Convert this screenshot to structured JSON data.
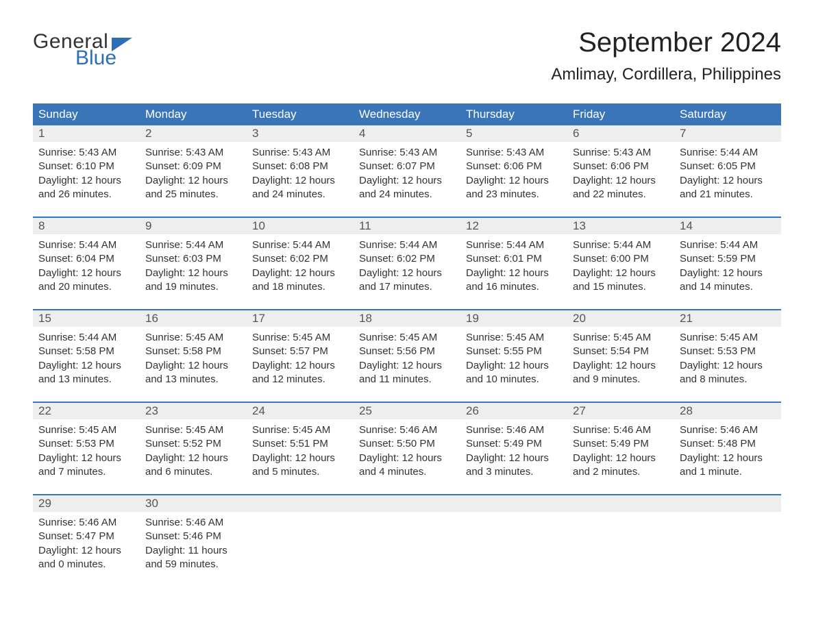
{
  "brand": {
    "word1": "General",
    "word2": "Blue",
    "word1_color": "#333333",
    "word2_color": "#2d6fb6",
    "flag_color": "#2d6fb6"
  },
  "header": {
    "title": "September 2024",
    "location": "Amlimay, Cordillera, Philippines",
    "title_fontsize": 40,
    "location_fontsize": 24
  },
  "style": {
    "header_bg": "#3a76b7",
    "header_text": "#ffffff",
    "day_head_bg": "#eeeeee",
    "day_head_text": "#555555",
    "body_text": "#333333",
    "week_divider": "#3a76b7",
    "page_bg": "#ffffff",
    "cell_fontsize": 15,
    "daynum_fontsize": 17
  },
  "columns": [
    "Sunday",
    "Monday",
    "Tuesday",
    "Wednesday",
    "Thursday",
    "Friday",
    "Saturday"
  ],
  "weeks": [
    [
      {
        "n": "1",
        "sunrise": "Sunrise: 5:43 AM",
        "sunset": "Sunset: 6:10 PM",
        "d1": "Daylight: 12 hours",
        "d2": "and 26 minutes."
      },
      {
        "n": "2",
        "sunrise": "Sunrise: 5:43 AM",
        "sunset": "Sunset: 6:09 PM",
        "d1": "Daylight: 12 hours",
        "d2": "and 25 minutes."
      },
      {
        "n": "3",
        "sunrise": "Sunrise: 5:43 AM",
        "sunset": "Sunset: 6:08 PM",
        "d1": "Daylight: 12 hours",
        "d2": "and 24 minutes."
      },
      {
        "n": "4",
        "sunrise": "Sunrise: 5:43 AM",
        "sunset": "Sunset: 6:07 PM",
        "d1": "Daylight: 12 hours",
        "d2": "and 24 minutes."
      },
      {
        "n": "5",
        "sunrise": "Sunrise: 5:43 AM",
        "sunset": "Sunset: 6:06 PM",
        "d1": "Daylight: 12 hours",
        "d2": "and 23 minutes."
      },
      {
        "n": "6",
        "sunrise": "Sunrise: 5:43 AM",
        "sunset": "Sunset: 6:06 PM",
        "d1": "Daylight: 12 hours",
        "d2": "and 22 minutes."
      },
      {
        "n": "7",
        "sunrise": "Sunrise: 5:44 AM",
        "sunset": "Sunset: 6:05 PM",
        "d1": "Daylight: 12 hours",
        "d2": "and 21 minutes."
      }
    ],
    [
      {
        "n": "8",
        "sunrise": "Sunrise: 5:44 AM",
        "sunset": "Sunset: 6:04 PM",
        "d1": "Daylight: 12 hours",
        "d2": "and 20 minutes."
      },
      {
        "n": "9",
        "sunrise": "Sunrise: 5:44 AM",
        "sunset": "Sunset: 6:03 PM",
        "d1": "Daylight: 12 hours",
        "d2": "and 19 minutes."
      },
      {
        "n": "10",
        "sunrise": "Sunrise: 5:44 AM",
        "sunset": "Sunset: 6:02 PM",
        "d1": "Daylight: 12 hours",
        "d2": "and 18 minutes."
      },
      {
        "n": "11",
        "sunrise": "Sunrise: 5:44 AM",
        "sunset": "Sunset: 6:02 PM",
        "d1": "Daylight: 12 hours",
        "d2": "and 17 minutes."
      },
      {
        "n": "12",
        "sunrise": "Sunrise: 5:44 AM",
        "sunset": "Sunset: 6:01 PM",
        "d1": "Daylight: 12 hours",
        "d2": "and 16 minutes."
      },
      {
        "n": "13",
        "sunrise": "Sunrise: 5:44 AM",
        "sunset": "Sunset: 6:00 PM",
        "d1": "Daylight: 12 hours",
        "d2": "and 15 minutes."
      },
      {
        "n": "14",
        "sunrise": "Sunrise: 5:44 AM",
        "sunset": "Sunset: 5:59 PM",
        "d1": "Daylight: 12 hours",
        "d2": "and 14 minutes."
      }
    ],
    [
      {
        "n": "15",
        "sunrise": "Sunrise: 5:44 AM",
        "sunset": "Sunset: 5:58 PM",
        "d1": "Daylight: 12 hours",
        "d2": "and 13 minutes."
      },
      {
        "n": "16",
        "sunrise": "Sunrise: 5:45 AM",
        "sunset": "Sunset: 5:58 PM",
        "d1": "Daylight: 12 hours",
        "d2": "and 13 minutes."
      },
      {
        "n": "17",
        "sunrise": "Sunrise: 5:45 AM",
        "sunset": "Sunset: 5:57 PM",
        "d1": "Daylight: 12 hours",
        "d2": "and 12 minutes."
      },
      {
        "n": "18",
        "sunrise": "Sunrise: 5:45 AM",
        "sunset": "Sunset: 5:56 PM",
        "d1": "Daylight: 12 hours",
        "d2": "and 11 minutes."
      },
      {
        "n": "19",
        "sunrise": "Sunrise: 5:45 AM",
        "sunset": "Sunset: 5:55 PM",
        "d1": "Daylight: 12 hours",
        "d2": "and 10 minutes."
      },
      {
        "n": "20",
        "sunrise": "Sunrise: 5:45 AM",
        "sunset": "Sunset: 5:54 PM",
        "d1": "Daylight: 12 hours",
        "d2": "and 9 minutes."
      },
      {
        "n": "21",
        "sunrise": "Sunrise: 5:45 AM",
        "sunset": "Sunset: 5:53 PM",
        "d1": "Daylight: 12 hours",
        "d2": "and 8 minutes."
      }
    ],
    [
      {
        "n": "22",
        "sunrise": "Sunrise: 5:45 AM",
        "sunset": "Sunset: 5:53 PM",
        "d1": "Daylight: 12 hours",
        "d2": "and 7 minutes."
      },
      {
        "n": "23",
        "sunrise": "Sunrise: 5:45 AM",
        "sunset": "Sunset: 5:52 PM",
        "d1": "Daylight: 12 hours",
        "d2": "and 6 minutes."
      },
      {
        "n": "24",
        "sunrise": "Sunrise: 5:45 AM",
        "sunset": "Sunset: 5:51 PM",
        "d1": "Daylight: 12 hours",
        "d2": "and 5 minutes."
      },
      {
        "n": "25",
        "sunrise": "Sunrise: 5:46 AM",
        "sunset": "Sunset: 5:50 PM",
        "d1": "Daylight: 12 hours",
        "d2": "and 4 minutes."
      },
      {
        "n": "26",
        "sunrise": "Sunrise: 5:46 AM",
        "sunset": "Sunset: 5:49 PM",
        "d1": "Daylight: 12 hours",
        "d2": "and 3 minutes."
      },
      {
        "n": "27",
        "sunrise": "Sunrise: 5:46 AM",
        "sunset": "Sunset: 5:49 PM",
        "d1": "Daylight: 12 hours",
        "d2": "and 2 minutes."
      },
      {
        "n": "28",
        "sunrise": "Sunrise: 5:46 AM",
        "sunset": "Sunset: 5:48 PM",
        "d1": "Daylight: 12 hours",
        "d2": "and 1 minute."
      }
    ],
    [
      {
        "n": "29",
        "sunrise": "Sunrise: 5:46 AM",
        "sunset": "Sunset: 5:47 PM",
        "d1": "Daylight: 12 hours",
        "d2": "and 0 minutes."
      },
      {
        "n": "30",
        "sunrise": "Sunrise: 5:46 AM",
        "sunset": "Sunset: 5:46 PM",
        "d1": "Daylight: 11 hours",
        "d2": "and 59 minutes."
      },
      null,
      null,
      null,
      null,
      null
    ]
  ]
}
